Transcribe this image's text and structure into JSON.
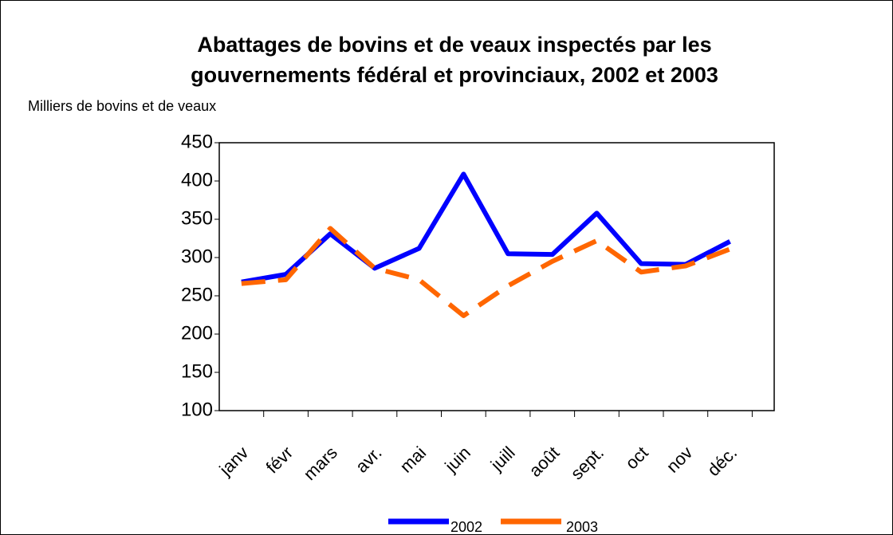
{
  "chart_data": {
    "type": "line",
    "title": "Abattages de bovins et de veaux inspectés par les",
    "subtitle": "gouvernements fédéral et provinciaux, 2002 et 2003",
    "y_label": "Milliers de bovins et de veaux",
    "categories": [
      "janv",
      "févr",
      "mars",
      "avr.",
      "mai",
      "juin",
      "juill",
      "août",
      "sept.",
      "oct",
      "nov",
      "déc."
    ],
    "series": [
      {
        "name": "2002",
        "color": "#0000ff",
        "dashed": false,
        "values": [
          268,
          278,
          331,
          286,
          312,
          409,
          305,
          304,
          358,
          292,
          291,
          321
        ]
      },
      {
        "name": "2003",
        "color": "#ff6600",
        "dashed": true,
        "values": [
          266,
          271,
          338,
          286,
          271,
          224,
          263,
          295,
          322,
          281,
          289,
          311
        ]
      }
    ],
    "ylim": [
      100,
      450
    ],
    "yticks": [
      100,
      150,
      200,
      250,
      300,
      350,
      400,
      450
    ],
    "grid": false
  }
}
